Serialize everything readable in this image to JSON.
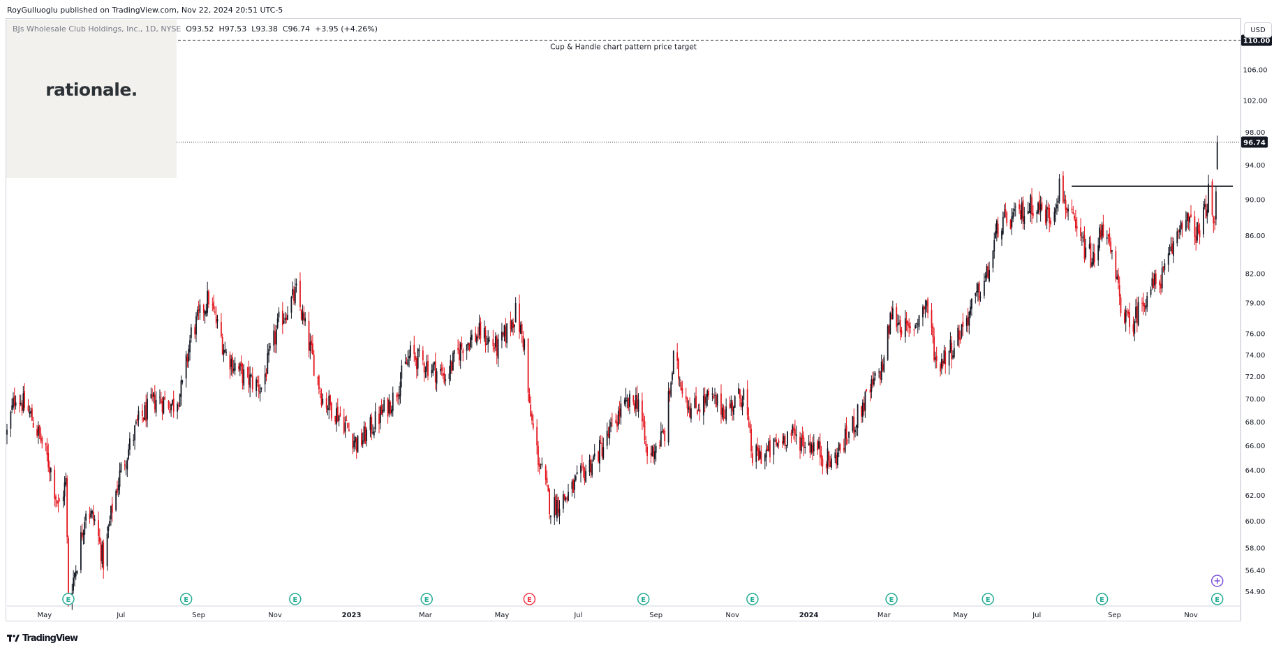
{
  "publish": {
    "text": "RoyGulluoglu published on TradingView.com, Nov 22, 2024 20:51 UTC-5"
  },
  "legend": {
    "symbol": "BJs Wholesale Club Holdings, Inc., 1D, NYSE",
    "o": "O93.52",
    "h": "H97.53",
    "l": "L93.38",
    "c": "C96.74",
    "change": "+3.95 (+4.26%)"
  },
  "logo": {
    "text": "rationale."
  },
  "currency": "USD",
  "annotation": {
    "text": "Cup & Handle chart pattern price target"
  },
  "footer": {
    "brand": "TradingView",
    "icon": "tradingview-logo-icon"
  },
  "colors": {
    "up": "#131722",
    "down": "#e3141c",
    "grid": "#e0e3eb",
    "axis_text": "#131722",
    "earnings_icon": "#22ab94",
    "earnings_icon_neg": "#f23645"
  },
  "chart_data": {
    "type": "candlestick",
    "title": "BJs Wholesale Club Holdings, Inc., 1D, NYSE",
    "xlabel": "",
    "ylabel": "",
    "price_scale": "log",
    "ylim": [
      53.9,
      113.0
    ],
    "y_ticks": [
      "54.90",
      "56.40",
      "58.00",
      "60.00",
      "62.00",
      "64.00",
      "66.00",
      "68.00",
      "70.00",
      "72.00",
      "74.00",
      "76.00",
      "79.00",
      "82.00",
      "86.00",
      "90.00",
      "94.00",
      "98.00",
      "102.00",
      "106.00",
      "110.00"
    ],
    "x_ticks": [
      "May",
      "Jul",
      "Sep",
      "Nov",
      "2023",
      "Mar",
      "May",
      "Jul",
      "Sep",
      "Nov",
      "2024",
      "Mar",
      "May",
      "Jul",
      "Sep",
      "Nov"
    ],
    "x_ticks_bold": [
      "2023",
      "2024"
    ],
    "x_start": "2022-04-01",
    "x_end": "2024-12-10",
    "last_price": {
      "label": "96.74",
      "value": 96.74
    },
    "target": {
      "label": "110.00",
      "value": 110.0,
      "annotation": "Cup & Handle chart pattern price target"
    },
    "resistance": {
      "value": 91.5,
      "from": "2024-07-01",
      "to": "2024-12-10"
    },
    "earnings_markers": [
      {
        "date": "2022-05-20",
        "kind": "E"
      },
      {
        "date": "2022-08-22",
        "kind": "E"
      },
      {
        "date": "2022-11-17",
        "kind": "E"
      },
      {
        "date": "2023-03-02",
        "kind": "E"
      },
      {
        "date": "2023-05-23",
        "kind": "E",
        "negative": true
      },
      {
        "date": "2023-08-22",
        "kind": "E"
      },
      {
        "date": "2023-11-17",
        "kind": "E"
      },
      {
        "date": "2024-03-07",
        "kind": "E"
      },
      {
        "date": "2024-05-23",
        "kind": "E"
      },
      {
        "date": "2024-08-22",
        "kind": "E"
      },
      {
        "date": "2024-11-22",
        "kind": "E"
      }
    ],
    "price_path": [
      [
        "2022-04-01",
        67.0
      ],
      [
        "2022-04-08",
        70.5
      ],
      [
        "2022-04-20",
        68.5
      ],
      [
        "2022-04-28",
        66.5
      ],
      [
        "2022-05-06",
        64.0
      ],
      [
        "2022-05-12",
        61.0
      ],
      [
        "2022-05-18",
        63.0
      ],
      [
        "2022-05-20",
        54.3
      ],
      [
        "2022-05-27",
        57.0
      ],
      [
        "2022-06-03",
        61.0
      ],
      [
        "2022-06-10",
        60.0
      ],
      [
        "2022-06-17",
        57.0
      ],
      [
        "2022-06-24",
        61.0
      ],
      [
        "2022-07-01",
        64.0
      ],
      [
        "2022-07-15",
        68.0
      ],
      [
        "2022-07-29",
        70.0
      ],
      [
        "2022-08-12",
        69.5
      ],
      [
        "2022-08-19",
        71.0
      ],
      [
        "2022-08-26",
        76.0
      ],
      [
        "2022-09-09",
        79.5
      ],
      [
        "2022-09-23",
        74.0
      ],
      [
        "2022-10-07",
        72.0
      ],
      [
        "2022-10-21",
        71.0
      ],
      [
        "2022-11-04",
        77.0
      ],
      [
        "2022-11-18",
        80.0
      ],
      [
        "2022-11-28",
        75.0
      ],
      [
        "2022-12-09",
        70.0
      ],
      [
        "2022-12-23",
        68.5
      ],
      [
        "2023-01-06",
        66.0
      ],
      [
        "2023-01-20",
        68.0
      ],
      [
        "2023-02-03",
        70.0
      ],
      [
        "2023-02-17",
        74.0
      ],
      [
        "2023-03-03",
        73.0
      ],
      [
        "2023-03-17",
        72.0
      ],
      [
        "2023-03-31",
        75.0
      ],
      [
        "2023-04-14",
        76.0
      ],
      [
        "2023-04-28",
        74.5
      ],
      [
        "2023-05-12",
        78.0
      ],
      [
        "2023-05-19",
        75.0
      ],
      [
        "2023-05-23",
        69.0
      ],
      [
        "2023-05-30",
        65.0
      ],
      [
        "2023-06-09",
        61.0
      ],
      [
        "2023-06-23",
        62.0
      ],
      [
        "2023-07-07",
        64.0
      ],
      [
        "2023-07-21",
        66.0
      ],
      [
        "2023-08-04",
        69.0
      ],
      [
        "2023-08-18",
        70.0
      ],
      [
        "2023-08-25",
        65.0
      ],
      [
        "2023-09-08",
        67.0
      ],
      [
        "2023-09-15",
        73.5
      ],
      [
        "2023-09-29",
        69.0
      ],
      [
        "2023-10-13",
        70.0
      ],
      [
        "2023-10-27",
        69.0
      ],
      [
        "2023-11-10",
        70.5
      ],
      [
        "2023-11-17",
        65.0
      ],
      [
        "2023-12-01",
        65.5
      ],
      [
        "2023-12-15",
        67.0
      ],
      [
        "2024-01-05",
        66.0
      ],
      [
        "2024-01-19",
        64.5
      ],
      [
        "2024-02-02",
        67.0
      ],
      [
        "2024-02-16",
        70.0
      ],
      [
        "2024-02-29",
        73.0
      ],
      [
        "2024-03-07",
        78.0
      ],
      [
        "2024-03-21",
        76.0
      ],
      [
        "2024-04-04",
        79.0
      ],
      [
        "2024-04-12",
        73.0
      ],
      [
        "2024-04-26",
        75.0
      ],
      [
        "2024-05-10",
        78.5
      ],
      [
        "2024-05-23",
        82.0
      ],
      [
        "2024-05-31",
        87.0
      ],
      [
        "2024-06-14",
        88.0
      ],
      [
        "2024-06-28",
        89.5
      ],
      [
        "2024-07-12",
        88.0
      ],
      [
        "2024-07-19",
        91.5
      ],
      [
        "2024-08-02",
        86.0
      ],
      [
        "2024-08-16",
        83.0
      ],
      [
        "2024-08-22",
        87.5
      ],
      [
        "2024-08-29",
        84.0
      ],
      [
        "2024-09-06",
        79.0
      ],
      [
        "2024-09-13",
        76.5
      ],
      [
        "2024-09-27",
        80.0
      ],
      [
        "2024-10-11",
        82.0
      ],
      [
        "2024-10-25",
        88.0
      ],
      [
        "2024-11-08",
        86.0
      ],
      [
        "2024-11-15",
        90.5
      ],
      [
        "2024-11-20",
        86.5
      ],
      [
        "2024-11-22",
        96.74
      ]
    ]
  }
}
